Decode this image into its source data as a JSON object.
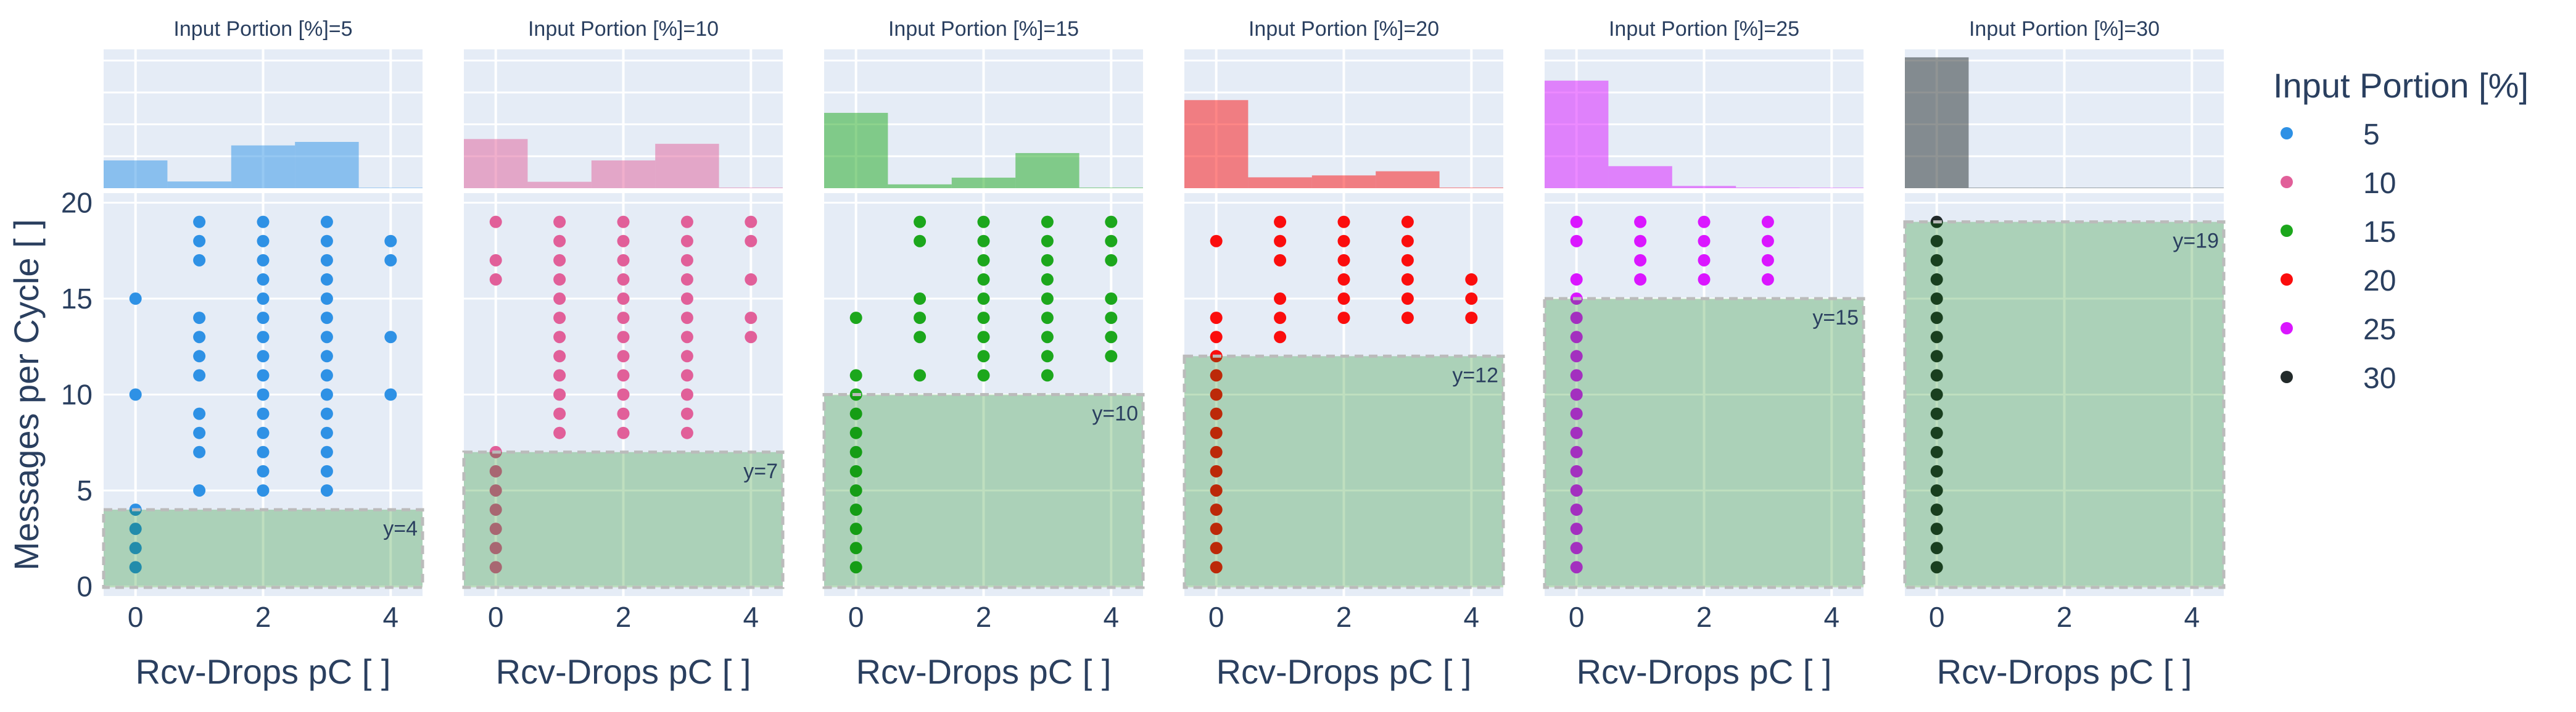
{
  "chart_data": {
    "type": "scatter",
    "title": "",
    "xlabel": "Rcv-Drops pC [ ]",
    "ylabel": "Messages per Cycle [ ]",
    "xlim": [
      -0.5,
      4.5
    ],
    "ylim": [
      -0.5,
      20.5
    ],
    "x_ticks": [
      "0",
      "2",
      "4"
    ],
    "x_tick_values": [
      0,
      2,
      4
    ],
    "y_ticks": [
      "0",
      "5",
      "10",
      "15",
      "20"
    ],
    "y_tick_values": [
      0,
      5,
      10,
      15,
      20
    ],
    "grid": true,
    "legend": {
      "title": "Input Portion [%]",
      "placement": "right",
      "entries": [
        "5",
        "10",
        "15",
        "20",
        "25",
        "30"
      ]
    },
    "marginal": "histogram",
    "histogram_ylim": [
      0,
      4.35
    ],
    "facets": [
      {
        "title": "Input Portion [%]=5",
        "name": "5",
        "color": "#2E91E5",
        "threshold": 4,
        "threshold_label": "y=4",
        "points": {
          "0": [
            15,
            10,
            4,
            3,
            2,
            1
          ],
          "1": [
            19,
            18,
            17,
            14,
            13,
            12,
            11,
            9,
            8,
            7,
            5
          ],
          "2": [
            19,
            18,
            17,
            16,
            15,
            14,
            13,
            12,
            11,
            10,
            9,
            8,
            7,
            6,
            5
          ],
          "3": [
            19,
            18,
            17,
            16,
            15,
            14,
            13,
            12,
            11,
            10,
            9,
            8,
            7,
            6,
            5
          ],
          "4": [
            18,
            17,
            13,
            10
          ]
        },
        "histogram": [
          0.87,
          0.21,
          1.34,
          1.45,
          0.0
        ]
      },
      {
        "title": "Input Portion [%]=10",
        "name": "10",
        "color": "#E15F99",
        "threshold": 7,
        "threshold_label": "y=7",
        "points": {
          "0": [
            19,
            17,
            16,
            7,
            6,
            5,
            4,
            3,
            2,
            1
          ],
          "1": [
            19,
            18,
            17,
            16,
            15,
            14,
            13,
            12,
            11,
            10,
            9,
            8
          ],
          "2": [
            19,
            18,
            17,
            16,
            15,
            14,
            13,
            12,
            11,
            10,
            9,
            8
          ],
          "3": [
            19,
            18,
            17,
            16,
            15,
            14,
            13,
            12,
            11,
            10,
            9,
            8
          ],
          "4": [
            19,
            18,
            16,
            14,
            13
          ]
        },
        "histogram": [
          1.54,
          0.2,
          0.87,
          1.39,
          0.02
        ]
      },
      {
        "title": "Input Portion [%]=15",
        "name": "15",
        "color": "#1CA71C",
        "threshold": 10,
        "threshold_label": "y=10",
        "points": {
          "0": [
            14,
            11,
            10,
            9,
            8,
            7,
            6,
            5,
            4,
            3,
            2,
            1
          ],
          "1": [
            19,
            18,
            15,
            14,
            13,
            11
          ],
          "2": [
            19,
            18,
            17,
            16,
            15,
            14,
            13,
            12,
            11
          ],
          "3": [
            19,
            18,
            17,
            16,
            15,
            14,
            13,
            12,
            11
          ],
          "4": [
            19,
            18,
            17,
            15,
            14,
            13,
            12
          ]
        },
        "histogram": [
          2.36,
          0.12,
          0.33,
          1.1,
          0.02
        ]
      },
      {
        "title": "Input Portion [%]=20",
        "name": "20",
        "color": "#FB0D0D",
        "threshold": 12,
        "threshold_label": "y=12",
        "points": {
          "0": [
            18,
            14,
            13,
            12,
            11,
            10,
            9,
            8,
            7,
            6,
            5,
            4,
            3,
            2,
            1
          ],
          "1": [
            19,
            18,
            17,
            15,
            14,
            13
          ],
          "2": [
            19,
            18,
            17,
            16,
            15,
            14
          ],
          "3": [
            19,
            18,
            17,
            16,
            15,
            14
          ],
          "4": [
            16,
            15,
            14
          ]
        },
        "histogram": [
          2.76,
          0.34,
          0.4,
          0.53,
          0.02
        ]
      },
      {
        "title": "Input Portion [%]=25",
        "name": "25",
        "color": "#DA16FF",
        "threshold": 15,
        "threshold_label": "y=15",
        "points": {
          "0": [
            19,
            18,
            16,
            15,
            14,
            13,
            12,
            11,
            10,
            9,
            8,
            7,
            6,
            5,
            4,
            3,
            2,
            1
          ],
          "1": [
            19,
            18,
            17,
            16
          ],
          "2": [
            19,
            18,
            17,
            16
          ],
          "3": [
            19,
            18,
            17,
            16
          ]
        },
        "histogram": [
          3.37,
          0.69,
          0.07,
          0.02,
          0.0
        ]
      },
      {
        "title": "Input Portion [%]=30",
        "name": "30",
        "color": "#222A2A",
        "threshold": 19,
        "threshold_label": "y=19",
        "points": {
          "0": [
            19,
            18,
            17,
            16,
            15,
            14,
            13,
            12,
            11,
            10,
            9,
            8,
            7,
            6,
            5,
            4,
            3,
            2,
            1
          ]
        },
        "histogram": [
          4.1,
          0,
          0,
          0,
          0
        ]
      }
    ],
    "colors": {
      "plot_bg": "#E5ECF6",
      "grid": "#FFFFFF",
      "threshold_fill": "#008000",
      "threshold_border": "#BBBBBB",
      "text": "#2A3F5F"
    }
  }
}
